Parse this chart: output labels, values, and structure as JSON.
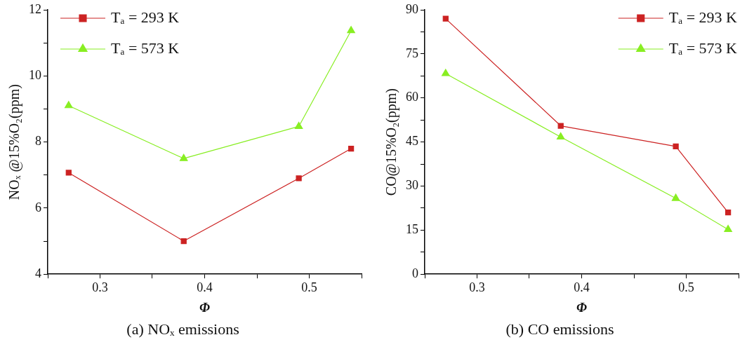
{
  "chart_data": [
    {
      "type": "line",
      "title": "(a) NOₓ emissions",
      "xlabel": "Φ",
      "ylabel": "NOₓ @15%O₂(ppm)",
      "x": [
        0.27,
        0.38,
        0.49,
        0.54
      ],
      "series": [
        {
          "name": "Tₐ = 293 K",
          "color": "#cc2222",
          "marker": "square",
          "values": [
            7.07,
            5.0,
            6.9,
            7.8
          ]
        },
        {
          "name": "Tₐ = 573 K",
          "color": "#88ee22",
          "marker": "triangle",
          "values": [
            9.1,
            7.5,
            8.47,
            11.37
          ]
        }
      ],
      "xlim": [
        0.25,
        0.55
      ],
      "xticks": [
        {
          "value": 0.25,
          "label": null
        },
        0.3,
        {
          "value": 0.35,
          "label": null
        },
        0.4,
        {
          "value": 0.45,
          "label": null
        },
        0.5,
        {
          "value": 0.55,
          "label": null
        }
      ],
      "ylim": [
        4,
        12
      ],
      "yticks": [
        4,
        {
          "value": 5,
          "label": null
        },
        6,
        {
          "value": 7,
          "label": null
        },
        8,
        {
          "value": 9,
          "label": null
        },
        10,
        {
          "value": 11,
          "label": null
        },
        12
      ],
      "grid": false,
      "legend": "top left"
    },
    {
      "type": "line",
      "title": "(b) CO emissions",
      "xlabel": "Φ",
      "ylabel": "CO@15%O₂(ppm)",
      "x": [
        0.27,
        0.38,
        0.49,
        0.54
      ],
      "series": [
        {
          "name": "Tₐ = 293 K",
          "color": "#cc2222",
          "marker": "square",
          "values": [
            87,
            50.5,
            43.5,
            21
          ]
        },
        {
          "name": "Tₐ = 573 K",
          "color": "#88ee22",
          "marker": "triangle",
          "values": [
            68.3,
            46.7,
            25.8,
            15.2
          ]
        }
      ],
      "xlim": [
        0.25,
        0.55
      ],
      "xticks": [
        {
          "value": 0.25,
          "label": null
        },
        0.3,
        {
          "value": 0.35,
          "label": null
        },
        0.4,
        {
          "value": 0.45,
          "label": null
        },
        0.5,
        {
          "value": 0.55,
          "label": null
        }
      ],
      "ylim": [
        0,
        90
      ],
      "yticks": [
        0,
        {
          "value": 7.5,
          "label": null
        },
        15,
        {
          "value": 22.5,
          "label": null
        },
        30,
        {
          "value": 37.5,
          "label": null
        },
        45,
        {
          "value": 52.5,
          "label": null
        },
        60,
        {
          "value": 67.5,
          "label": null
        },
        75,
        {
          "value": 82.5,
          "label": null
        },
        90
      ],
      "grid": false,
      "legend": "top right"
    }
  ]
}
